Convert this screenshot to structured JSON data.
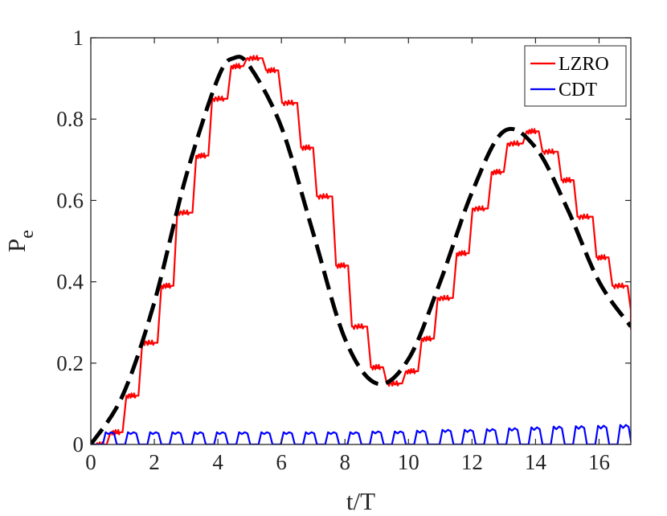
{
  "chart_data": {
    "type": "line",
    "xlabel": "t/T",
    "ylabel": {
      "main": "P",
      "subscript": "e"
    },
    "xlim": [
      0,
      17
    ],
    "ylim": [
      0,
      1
    ],
    "xticks": [
      "0",
      "2",
      "4",
      "6",
      "8",
      "10",
      "12",
      "14",
      "16"
    ],
    "yticks": [
      "0",
      "0.2",
      "0.4",
      "0.6",
      "0.8",
      "1"
    ],
    "grid": false,
    "legend_position": "top-right",
    "series": [
      {
        "name": "LZRO",
        "color": "#ff0000",
        "style": "solid stepped, small oscillations on each step",
        "plateaus": [
          [
            0.0,
            0.0
          ],
          [
            0.5,
            0.03
          ],
          [
            1.0,
            0.12
          ],
          [
            1.5,
            0.25
          ],
          [
            2.1,
            0.39
          ],
          [
            2.6,
            0.57
          ],
          [
            3.2,
            0.71
          ],
          [
            3.7,
            0.85
          ],
          [
            4.3,
            0.93
          ],
          [
            4.8,
            0.95
          ],
          [
            5.4,
            0.92
          ],
          [
            5.9,
            0.84
          ],
          [
            6.5,
            0.73
          ],
          [
            7.0,
            0.61
          ],
          [
            7.6,
            0.44
          ],
          [
            8.1,
            0.29
          ],
          [
            8.7,
            0.19
          ],
          [
            9.2,
            0.15
          ],
          [
            9.8,
            0.18
          ],
          [
            10.3,
            0.26
          ],
          [
            10.8,
            0.36
          ],
          [
            11.4,
            0.47
          ],
          [
            11.9,
            0.58
          ],
          [
            12.5,
            0.67
          ],
          [
            13.0,
            0.74
          ],
          [
            13.6,
            0.77
          ],
          [
            14.1,
            0.72
          ],
          [
            14.7,
            0.65
          ],
          [
            15.2,
            0.56
          ],
          [
            15.8,
            0.46
          ],
          [
            16.3,
            0.39
          ],
          [
            16.9,
            0.33
          ],
          [
            17.0,
            0.29
          ]
        ]
      },
      {
        "name": "CDT",
        "color": "#0000ff",
        "style": "periodic bumps near zero",
        "bumps": [
          [
            0.6,
            0.03
          ],
          [
            1.3,
            0.03
          ],
          [
            2.0,
            0.03
          ],
          [
            2.7,
            0.03
          ],
          [
            3.4,
            0.03
          ],
          [
            4.1,
            0.03
          ],
          [
            4.8,
            0.03
          ],
          [
            5.5,
            0.03
          ],
          [
            6.2,
            0.03
          ],
          [
            6.9,
            0.03
          ],
          [
            7.6,
            0.03
          ],
          [
            8.3,
            0.03
          ],
          [
            9.0,
            0.032
          ],
          [
            9.7,
            0.032
          ],
          [
            10.4,
            0.034
          ],
          [
            11.2,
            0.036
          ],
          [
            11.9,
            0.036
          ],
          [
            12.6,
            0.038
          ],
          [
            13.3,
            0.04
          ],
          [
            14.0,
            0.042
          ],
          [
            14.7,
            0.044
          ],
          [
            15.4,
            0.045
          ],
          [
            16.1,
            0.046
          ],
          [
            16.8,
            0.048
          ]
        ]
      },
      {
        "name": "",
        "color": "#000000",
        "style": "thick dashed, smooth envelope",
        "points": [
          [
            0.0,
            0.0
          ],
          [
            1.0,
            0.12
          ],
          [
            2.0,
            0.35
          ],
          [
            3.0,
            0.66
          ],
          [
            4.0,
            0.9
          ],
          [
            4.5,
            0.95
          ],
          [
            5.0,
            0.93
          ],
          [
            6.0,
            0.78
          ],
          [
            7.0,
            0.52
          ],
          [
            8.0,
            0.26
          ],
          [
            9.0,
            0.15
          ],
          [
            10.0,
            0.21
          ],
          [
            11.0,
            0.4
          ],
          [
            12.0,
            0.62
          ],
          [
            13.0,
            0.77
          ],
          [
            14.0,
            0.73
          ],
          [
            15.0,
            0.58
          ],
          [
            16.0,
            0.4
          ],
          [
            17.0,
            0.29
          ]
        ]
      }
    ]
  }
}
